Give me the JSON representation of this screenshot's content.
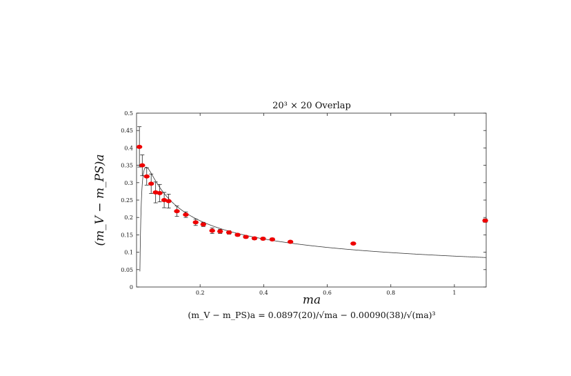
{
  "chart_data": {
    "type": "scatter",
    "title": "20³ × 20 Overlap",
    "xlabel": "ma",
    "ylabel": "(m_V − m_PS)a",
    "caption": "(m_V − m_PS)a = 0.0897(20)/√ma − 0.00090(38)/√(ma)³",
    "xlim": [
      0,
      1.1
    ],
    "ylim": [
      0,
      0.5
    ],
    "xticks": [
      0.2,
      0.4,
      0.6,
      0.8,
      1
    ],
    "xtick_labels": [
      "0.2",
      "0.4",
      "0.6",
      "0.8",
      "1"
    ],
    "yticks": [
      0,
      0.05,
      0.1,
      0.15,
      0.2,
      0.25,
      0.3,
      0.35,
      0.4,
      0.45,
      0.5
    ],
    "ytick_labels": [
      "0",
      "0.05",
      "0.1",
      "0.15",
      "0.2",
      "0.25",
      "0.3",
      "0.35",
      "0.4",
      "0.45",
      "0.5"
    ],
    "grid": false,
    "legend": "none",
    "series": [
      {
        "marker_color": "#ee0000",
        "points": [
          {
            "x": 0.009,
            "y": 0.403,
            "err": 0.058
          },
          {
            "x": 0.018,
            "y": 0.35,
            "err": 0.03
          },
          {
            "x": 0.032,
            "y": 0.318,
            "err": 0.025
          },
          {
            "x": 0.046,
            "y": 0.297,
            "err": 0.028
          },
          {
            "x": 0.06,
            "y": 0.272,
            "err": 0.03
          },
          {
            "x": 0.073,
            "y": 0.27,
            "err": 0.025
          },
          {
            "x": 0.087,
            "y": 0.25,
            "err": 0.022
          },
          {
            "x": 0.101,
            "y": 0.247,
            "err": 0.02
          },
          {
            "x": 0.127,
            "y": 0.218,
            "err": 0.015
          },
          {
            "x": 0.155,
            "y": 0.208,
            "err": 0.008
          },
          {
            "x": 0.186,
            "y": 0.186,
            "err": 0.009
          },
          {
            "x": 0.21,
            "y": 0.18,
            "err": 0.006
          },
          {
            "x": 0.238,
            "y": 0.162,
            "err": 0.008
          },
          {
            "x": 0.263,
            "y": 0.16,
            "err": 0.006
          },
          {
            "x": 0.291,
            "y": 0.157,
            "err": 0.005
          },
          {
            "x": 0.318,
            "y": 0.15,
            "err": 0.004
          },
          {
            "x": 0.344,
            "y": 0.144,
            "err": 0.004
          },
          {
            "x": 0.371,
            "y": 0.14,
            "err": 0.004
          },
          {
            "x": 0.398,
            "y": 0.139,
            "err": 0.004
          },
          {
            "x": 0.427,
            "y": 0.137,
            "err": 0.004
          },
          {
            "x": 0.484,
            "y": 0.13,
            "err": 0.003
          },
          {
            "x": 0.682,
            "y": 0.125,
            "err": 0.003
          },
          {
            "x": 1.097,
            "y": 0.191,
            "err": 0.005
          }
        ]
      }
    ],
    "fit": {
      "a": 0.0897,
      "b": 0.0009,
      "line_color": "#333333"
    }
  }
}
